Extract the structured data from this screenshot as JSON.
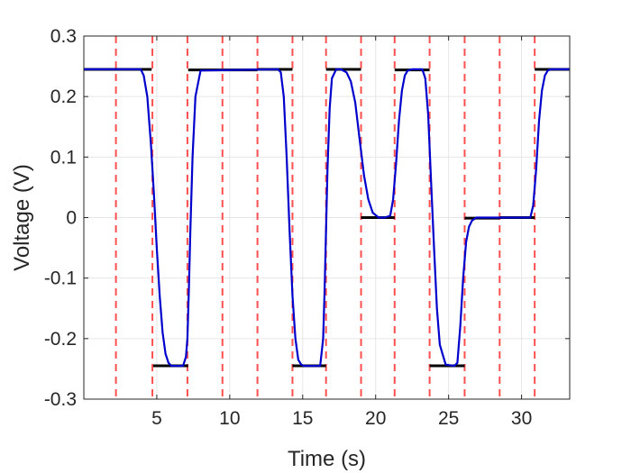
{
  "chart_data": {
    "type": "line",
    "title": "",
    "xlabel": "Time (s)",
    "ylabel": "Voltage (V)",
    "xlim": [
      0,
      33.3
    ],
    "ylim": [
      -0.3,
      0.3
    ],
    "xticks": [
      5,
      10,
      15,
      20,
      25,
      30
    ],
    "xtick_labels": [
      "5",
      "10",
      "15",
      "20",
      "25",
      "30"
    ],
    "yticks": [
      -0.3,
      -0.2,
      -0.1,
      0,
      0.1,
      0.2,
      0.3
    ],
    "ytick_labels": [
      "-0.3",
      "-0.2",
      "-0.1",
      "0",
      "0.1",
      "0.2",
      "0.3"
    ],
    "grid": true,
    "legend": "none",
    "colors": {
      "signal": "#0000CC",
      "target_levels": "#000000",
      "switch_lines": "#FF5050",
      "grid": "#E6E6E6",
      "axes": "#262626"
    },
    "series": [
      {
        "style": "solid-blue",
        "x": [
          0,
          3.9,
          4.1,
          4.35,
          4.6,
          4.8,
          5.0,
          5.2,
          5.4,
          5.6,
          5.8,
          6.0,
          6.1,
          6.3,
          6.8,
          7.0,
          7.1,
          7.2,
          7.3,
          7.45,
          7.65,
          8.0,
          13.3,
          13.5,
          13.7,
          13.9,
          14.1,
          14.3,
          14.5,
          14.7,
          14.9,
          15.1,
          15.3,
          15.6,
          16.2,
          16.4,
          16.5,
          16.6,
          16.7,
          16.85,
          17.0,
          17.3,
          17.6,
          18.0,
          18.3,
          18.6,
          18.9,
          19.2,
          19.5,
          19.8,
          20.2,
          20.6,
          21.0,
          21.2,
          21.4,
          21.6,
          21.8,
          22.0,
          22.2,
          22.5,
          23.2,
          23.4,
          23.6,
          23.8,
          24.0,
          24.2,
          24.4,
          24.8,
          25.4,
          25.6,
          25.8,
          26.0,
          26.2,
          26.4,
          26.6,
          26.9,
          27.3,
          28.0,
          30.6,
          30.8,
          31.0,
          31.2,
          31.4,
          31.6,
          31.8,
          32.0,
          32.3,
          32.7,
          33.3
        ],
        "y": [
          0.245,
          0.245,
          0.235,
          0.2,
          0.12,
          0.04,
          -0.05,
          -0.13,
          -0.19,
          -0.225,
          -0.24,
          -0.245,
          -0.245,
          -0.245,
          -0.245,
          -0.23,
          -0.2,
          -0.12,
          -0.02,
          0.1,
          0.2,
          0.243,
          0.245,
          0.24,
          0.2,
          0.1,
          -0.02,
          -0.13,
          -0.2,
          -0.235,
          -0.243,
          -0.245,
          -0.245,
          -0.245,
          -0.245,
          -0.2,
          -0.12,
          -0.02,
          0.08,
          0.18,
          0.23,
          0.245,
          0.245,
          0.24,
          0.225,
          0.19,
          0.13,
          0.07,
          0.03,
          0.008,
          0.0,
          0.0,
          0.003,
          0.03,
          0.09,
          0.16,
          0.21,
          0.235,
          0.243,
          0.245,
          0.245,
          0.23,
          0.17,
          0.06,
          -0.05,
          -0.15,
          -0.21,
          -0.243,
          -0.245,
          -0.24,
          -0.18,
          -0.1,
          -0.04,
          -0.015,
          -0.005,
          0.0,
          0.0,
          0.0,
          0.0,
          0.02,
          0.08,
          0.16,
          0.21,
          0.235,
          0.243,
          0.245,
          0.245,
          0.245,
          0.245
        ]
      }
    ],
    "target_levels": [
      {
        "x0": 0,
        "x1": 4.65,
        "y": 0.245
      },
      {
        "x0": 4.75,
        "x1": 7.15,
        "y": -0.245
      },
      {
        "x0": 7.15,
        "x1": 9.5,
        "y": 0.244
      },
      {
        "x0": 9.5,
        "x1": 11.9,
        "y": 0.244
      },
      {
        "x0": 11.9,
        "x1": 14.3,
        "y": 0.245
      },
      {
        "x0": 14.3,
        "x1": 16.6,
        "y": -0.245
      },
      {
        "x0": 16.6,
        "x1": 19.0,
        "y": 0.245
      },
      {
        "x0": 19.0,
        "x1": 21.3,
        "y": 0.0
      },
      {
        "x0": 21.3,
        "x1": 23.7,
        "y": 0.244
      },
      {
        "x0": 23.7,
        "x1": 26.1,
        "y": -0.245
      },
      {
        "x0": 26.1,
        "x1": 28.5,
        "y": -0.001
      },
      {
        "x0": 28.5,
        "x1": 30.9,
        "y": 0.0
      },
      {
        "x0": 30.9,
        "x1": 33.3,
        "y": 0.245
      }
    ],
    "switch_times": [
      2.2,
      4.7,
      7.1,
      9.5,
      11.9,
      14.3,
      16.6,
      19.0,
      21.3,
      23.7,
      26.1,
      28.5,
      30.9
    ]
  }
}
